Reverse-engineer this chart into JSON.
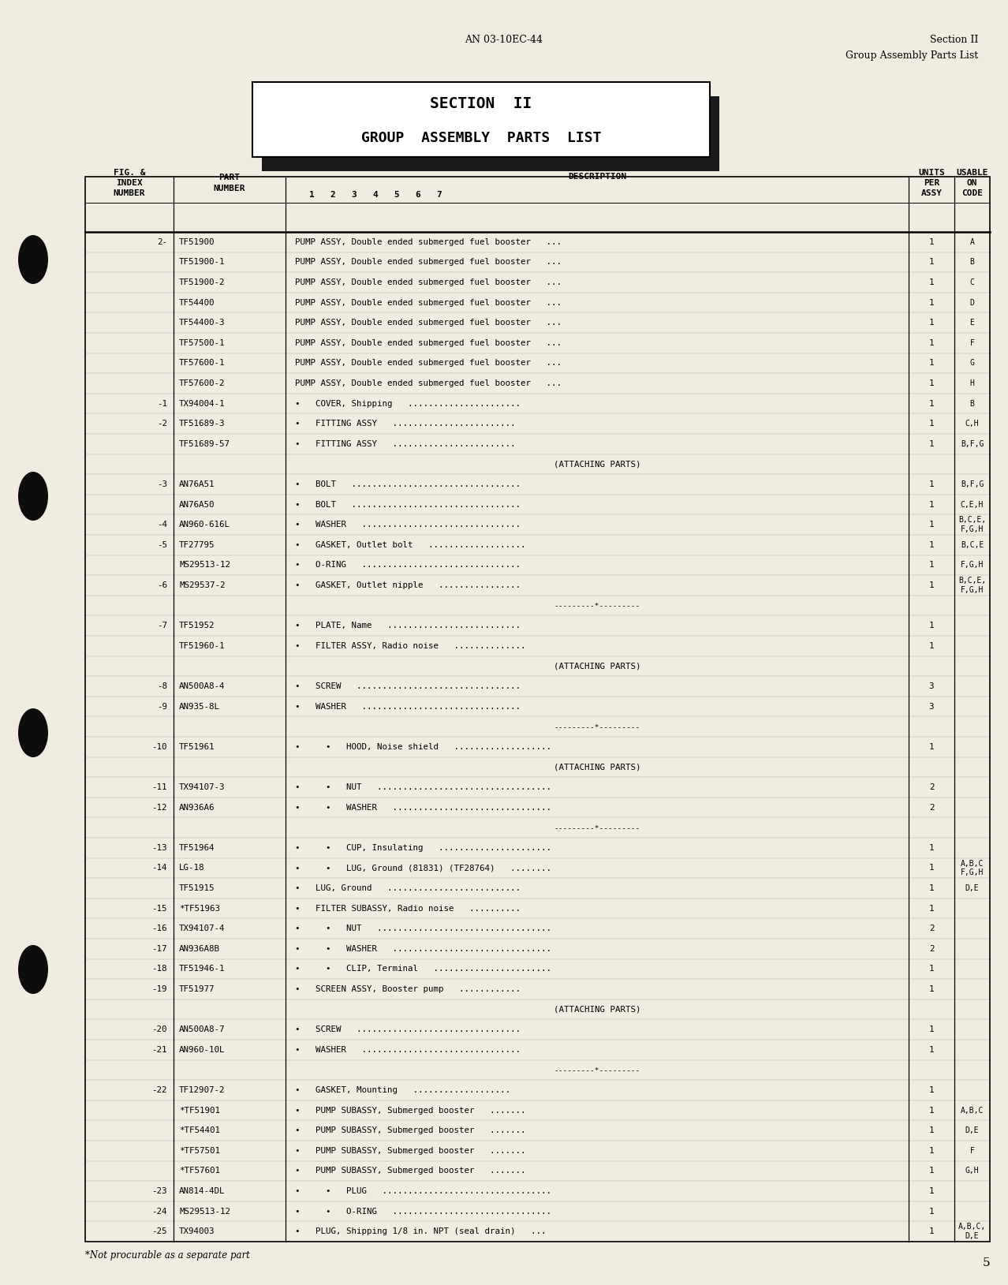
{
  "page_num": "5",
  "doc_num": "AN 03-10EC-44",
  "section_header_line1": "Section II",
  "section_header_line2": "Group Assembly Parts List",
  "title_box_line1": "SECTION II",
  "title_box_line2": "GROUP ASSEMBLY PARTS LIST",
  "bg_color": "#f0ede0",
  "rows": [
    {
      "fig": "2-",
      "part": "TF51900",
      "ind": 0,
      "desc": "PUMP ASSY, Double ended submerged fuel booster",
      "dots": "...",
      "units": "1",
      "usable": "A"
    },
    {
      "fig": "",
      "part": "TF51900-1",
      "ind": 0,
      "desc": "PUMP ASSY, Double ended submerged fuel booster",
      "dots": "...",
      "units": "1",
      "usable": "B"
    },
    {
      "fig": "",
      "part": "TF51900-2",
      "ind": 0,
      "desc": "PUMP ASSY, Double ended submerged fuel booster",
      "dots": "...",
      "units": "1",
      "usable": "C"
    },
    {
      "fig": "",
      "part": "TF54400",
      "ind": 0,
      "desc": "PUMP ASSY, Double ended submerged fuel booster",
      "dots": "...",
      "units": "1",
      "usable": "D"
    },
    {
      "fig": "",
      "part": "TF54400-3",
      "ind": 0,
      "desc": "PUMP ASSY, Double ended submerged fuel booster",
      "dots": "...",
      "units": "1",
      "usable": "E"
    },
    {
      "fig": "",
      "part": "TF57500-1",
      "ind": 0,
      "desc": "PUMP ASSY, Double ended submerged fuel booster",
      "dots": "...",
      "units": "1",
      "usable": "F"
    },
    {
      "fig": "",
      "part": "TF57600-1",
      "ind": 0,
      "desc": "PUMP ASSY, Double ended submerged fuel booster",
      "dots": "...",
      "units": "1",
      "usable": "G"
    },
    {
      "fig": "",
      "part": "TF57600-2",
      "ind": 0,
      "desc": "PUMP ASSY, Double ended submerged fuel booster",
      "dots": "...",
      "units": "1",
      "usable": "H"
    },
    {
      "fig": "-1",
      "part": "TX94004-1",
      "ind": 1,
      "desc": "COVER, Shipping",
      "dots": "......................",
      "units": "1",
      "usable": "B"
    },
    {
      "fig": "-2",
      "part": "TF51689-3",
      "ind": 1,
      "desc": "FITTING ASSY",
      "dots": "........................",
      "units": "1",
      "usable": "C,H"
    },
    {
      "fig": "",
      "part": "TF51689-57",
      "ind": 1,
      "desc": "FITTING ASSY",
      "dots": "........................",
      "units": "1",
      "usable": "B,F,G"
    },
    {
      "fig": "",
      "part": "",
      "ind": -1,
      "desc": "(ATTACHING PARTS)",
      "dots": "",
      "units": "",
      "usable": ""
    },
    {
      "fig": "-3",
      "part": "AN76A51",
      "ind": 1,
      "desc": "BOLT",
      "dots": ".................................",
      "units": "1",
      "usable": "B,F,G"
    },
    {
      "fig": "",
      "part": "AN76A50",
      "ind": 1,
      "desc": "BOLT",
      "dots": ".................................",
      "units": "1",
      "usable": "C,E,H"
    },
    {
      "fig": "-4",
      "part": "AN960-616L",
      "ind": 1,
      "desc": "WASHER",
      "dots": "...............................",
      "units": "1",
      "usable": "B,C,E,\nF,G,H"
    },
    {
      "fig": "-5",
      "part": "TF27795",
      "ind": 1,
      "desc": "GASKET, Outlet bolt",
      "dots": "...................",
      "units": "1",
      "usable": "B,C,E"
    },
    {
      "fig": "",
      "part": "MS29513-12",
      "ind": 1,
      "desc": "O-RING",
      "dots": "...............................",
      "units": "1",
      "usable": "F,G,H"
    },
    {
      "fig": "-6",
      "part": "MS29537-2",
      "ind": 1,
      "desc": "GASKET, Outlet nipple",
      "dots": "................",
      "units": "1",
      "usable": "B,C,E,\nF,G,H"
    },
    {
      "fig": "",
      "part": "",
      "ind": -2,
      "desc": "---------*---------",
      "dots": "",
      "units": "",
      "usable": ""
    },
    {
      "fig": "-7",
      "part": "TF51952",
      "ind": 1,
      "desc": "PLATE, Name",
      "dots": "..........................",
      "units": "1",
      "usable": ""
    },
    {
      "fig": "",
      "part": "TF51960-1",
      "ind": 1,
      "desc": "FILTER ASSY, Radio noise",
      "dots": "..............",
      "units": "1",
      "usable": ""
    },
    {
      "fig": "",
      "part": "",
      "ind": -1,
      "desc": "(ATTACHING PARTS)",
      "dots": "",
      "units": "",
      "usable": ""
    },
    {
      "fig": "-8",
      "part": "AN500A8-4",
      "ind": 1,
      "desc": "SCREW",
      "dots": "................................",
      "units": "3",
      "usable": ""
    },
    {
      "fig": "-9",
      "part": "AN935-8L",
      "ind": 1,
      "desc": "WASHER",
      "dots": "...............................",
      "units": "3",
      "usable": ""
    },
    {
      "fig": "",
      "part": "",
      "ind": -2,
      "desc": "---------*---------",
      "dots": "",
      "units": "",
      "usable": ""
    },
    {
      "fig": "-10",
      "part": "TF51961",
      "ind": 2,
      "desc": "HOOD, Noise shield",
      "dots": "...................",
      "units": "1",
      "usable": ""
    },
    {
      "fig": "",
      "part": "",
      "ind": -1,
      "desc": "(ATTACHING PARTS)",
      "dots": "",
      "units": "",
      "usable": ""
    },
    {
      "fig": "-11",
      "part": "TX94107-3",
      "ind": 2,
      "desc": "NUT",
      "dots": "..................................",
      "units": "2",
      "usable": ""
    },
    {
      "fig": "-12",
      "part": "AN936A6",
      "ind": 2,
      "desc": "WASHER",
      "dots": "...............................",
      "units": "2",
      "usable": ""
    },
    {
      "fig": "",
      "part": "",
      "ind": -2,
      "desc": "---------*---------",
      "dots": "",
      "units": "",
      "usable": ""
    },
    {
      "fig": "-13",
      "part": "TF51964",
      "ind": 2,
      "desc": "CUP, Insulating",
      "dots": "......................",
      "units": "1",
      "usable": ""
    },
    {
      "fig": "-14",
      "part": "LG-18",
      "ind": 2,
      "desc": "LUG, Ground (81831) (TF28764)",
      "dots": "........",
      "units": "1",
      "usable": "A,B,C\nF,G,H"
    },
    {
      "fig": "",
      "part": "TF51915",
      "ind": 1,
      "desc": "LUG, Ground",
      "dots": "..........................",
      "units": "1",
      "usable": "D,E"
    },
    {
      "fig": "-15",
      "part": "*TF51963",
      "ind": 1,
      "desc": "FILTER SUBASSY, Radio noise",
      "dots": "..........",
      "units": "1",
      "usable": ""
    },
    {
      "fig": "-16",
      "part": "TX94107-4",
      "ind": 2,
      "desc": "NUT",
      "dots": "..................................",
      "units": "2",
      "usable": ""
    },
    {
      "fig": "-17",
      "part": "AN936A8B",
      "ind": 2,
      "desc": "WASHER",
      "dots": "...............................",
      "units": "2",
      "usable": ""
    },
    {
      "fig": "-18",
      "part": "TF51946-1",
      "ind": 2,
      "desc": "CLIP, Terminal",
      "dots": ".......................",
      "units": "1",
      "usable": ""
    },
    {
      "fig": "-19",
      "part": "TF51977",
      "ind": 1,
      "desc": "SCREEN ASSY, Booster pump",
      "dots": "............",
      "units": "1",
      "usable": ""
    },
    {
      "fig": "",
      "part": "",
      "ind": -1,
      "desc": "(ATTACHING PARTS)",
      "dots": "",
      "units": "",
      "usable": ""
    },
    {
      "fig": "-20",
      "part": "AN500A8-7",
      "ind": 1,
      "desc": "SCREW",
      "dots": "................................",
      "units": "1",
      "usable": ""
    },
    {
      "fig": "-21",
      "part": "AN960-10L",
      "ind": 1,
      "desc": "WASHER",
      "dots": "...............................",
      "units": "1",
      "usable": ""
    },
    {
      "fig": "",
      "part": "",
      "ind": -2,
      "desc": "---------*---------",
      "dots": "",
      "units": "",
      "usable": ""
    },
    {
      "fig": "-22",
      "part": "TF12907-2",
      "ind": 1,
      "desc": "GASKET, Mounting",
      "dots": "...................",
      "units": "1",
      "usable": ""
    },
    {
      "fig": "",
      "part": "*TF51901",
      "ind": 1,
      "desc": "PUMP SUBASSY, Submerged booster",
      "dots": ".......",
      "units": "1",
      "usable": "A,B,C"
    },
    {
      "fig": "",
      "part": "*TF54401",
      "ind": 1,
      "desc": "PUMP SUBASSY, Submerged booster",
      "dots": ".......",
      "units": "1",
      "usable": "D,E"
    },
    {
      "fig": "",
      "part": "*TF57501",
      "ind": 1,
      "desc": "PUMP SUBASSY, Submerged booster",
      "dots": ".......",
      "units": "1",
      "usable": "F"
    },
    {
      "fig": "",
      "part": "*TF57601",
      "ind": 1,
      "desc": "PUMP SUBASSY, Submerged booster",
      "dots": ".......",
      "units": "1",
      "usable": "G,H"
    },
    {
      "fig": "-23",
      "part": "AN814-4DL",
      "ind": 2,
      "desc": "PLUG",
      "dots": ".................................",
      "units": "1",
      "usable": ""
    },
    {
      "fig": "-24",
      "part": "MS29513-12",
      "ind": 2,
      "desc": "O-RING",
      "dots": "...............................",
      "units": "1",
      "usable": ""
    },
    {
      "fig": "-25",
      "part": "TX94003",
      "ind": 1,
      "desc": "PLUG, Shipping 1/8 in. NPT (seal drain)",
      "dots": "...",
      "units": "1",
      "usable": "A,B,C,\nD,E"
    }
  ],
  "footnote": "*Not procurable as a separate part"
}
